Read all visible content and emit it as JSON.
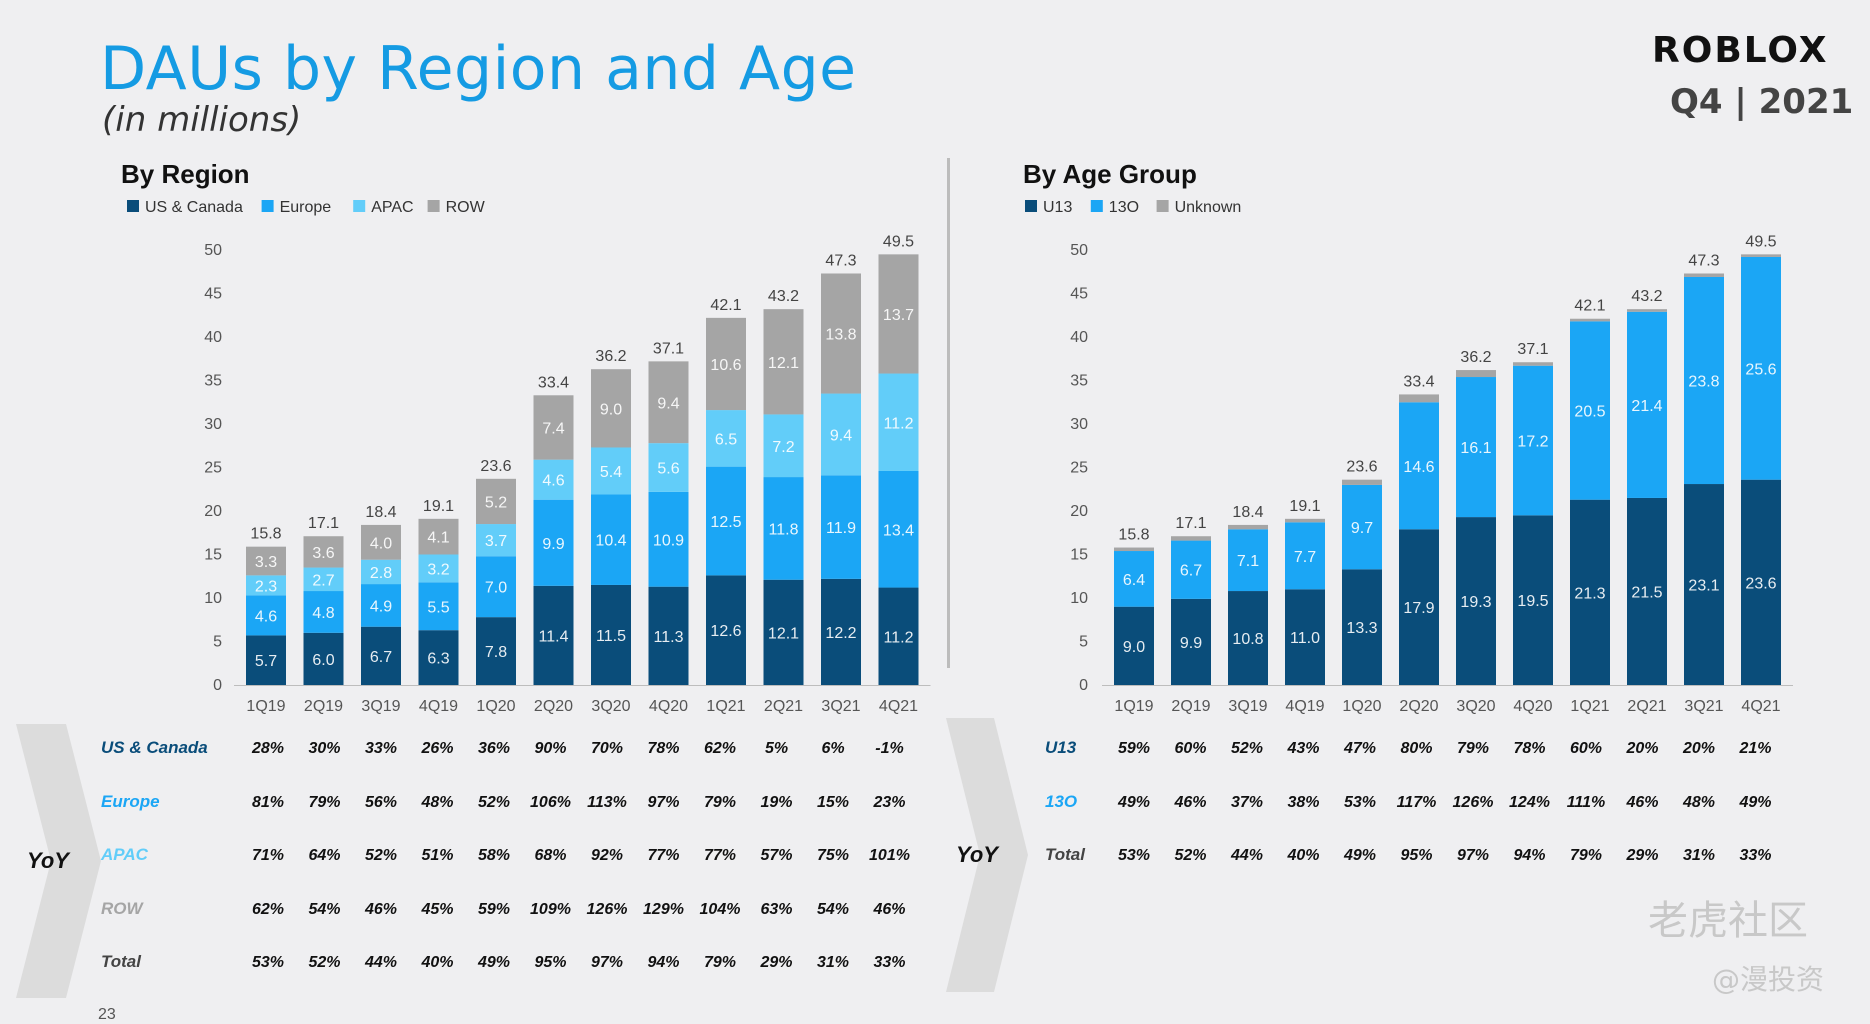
{
  "header": {
    "title": "DAUs by Region and Age",
    "subtitle": "(in millions)",
    "logo": "ROBLOX",
    "period": "Q4 | 2021"
  },
  "page_number": "23",
  "watermark": {
    "main": "老虎社区",
    "sub": "@漫投资"
  },
  "colors": {
    "dark": "#0a4d7a",
    "mid": "#1ba6f5",
    "light": "#62cdf9",
    "gray": "#a5a5a5"
  },
  "chart_data": [
    {
      "type": "bar",
      "stacked": true,
      "title": "By Region",
      "categories": [
        "1Q19",
        "2Q19",
        "3Q19",
        "4Q19",
        "1Q20",
        "2Q20",
        "3Q20",
        "4Q20",
        "1Q21",
        "2Q21",
        "3Q21",
        "4Q21"
      ],
      "ylim": [
        0,
        50
      ],
      "yticks": [
        0,
        5,
        10,
        15,
        20,
        25,
        30,
        35,
        40,
        45,
        50
      ],
      "legend_position": "top-left",
      "series": [
        {
          "name": "US & Canada",
          "color": "#0a4d7a",
          "values": [
            5.7,
            6.0,
            6.7,
            6.3,
            7.8,
            11.4,
            11.5,
            11.3,
            12.6,
            12.1,
            12.2,
            11.2
          ],
          "labels": [
            "5.7",
            "6.0",
            "6.7",
            "6.3",
            "7.8",
            "11.4",
            "11.5",
            "11.3",
            "12.6",
            "12.1",
            "12.2",
            "11.2"
          ]
        },
        {
          "name": "Europe",
          "color": "#1ba6f5",
          "values": [
            4.6,
            4.8,
            4.9,
            5.5,
            7.0,
            9.9,
            10.4,
            10.9,
            12.5,
            11.8,
            11.9,
            13.4
          ],
          "labels": [
            "4.6",
            "4.8",
            "4.9",
            "5.5",
            "7.0",
            "9.9",
            "10.4",
            "10.9",
            "12.5",
            "11.8",
            "11.9",
            "13.4"
          ]
        },
        {
          "name": "APAC",
          "color": "#62cdf9",
          "values": [
            2.3,
            2.7,
            2.8,
            3.2,
            3.7,
            4.6,
            5.4,
            5.6,
            6.5,
            7.2,
            9.4,
            11.2
          ],
          "labels": [
            "2.3",
            "2.7",
            "2.8",
            "3.2",
            "3.7",
            "4.6",
            "5.4",
            "5.6",
            "6.5",
            "7.2",
            "9.4",
            "11.2"
          ]
        },
        {
          "name": "ROW",
          "color": "#a5a5a5",
          "values": [
            3.3,
            3.6,
            4.0,
            4.1,
            5.2,
            7.4,
            9.0,
            9.4,
            10.6,
            12.1,
            13.8,
            13.7
          ],
          "labels": [
            "3.3",
            "3.6",
            "4.0",
            "4.1",
            "5.2",
            "7.4",
            "9.0",
            "9.4",
            "10.6",
            "12.1",
            "13.8",
            "13.7"
          ]
        }
      ],
      "totals": [
        "15.8",
        "17.1",
        "18.4",
        "19.1",
        "23.6",
        "33.4",
        "36.2",
        "37.1",
        "42.1",
        "43.2",
        "47.3",
        "49.5"
      ]
    },
    {
      "type": "bar",
      "stacked": true,
      "title": "By Age Group",
      "categories": [
        "1Q19",
        "2Q19",
        "3Q19",
        "4Q19",
        "1Q20",
        "2Q20",
        "3Q20",
        "4Q20",
        "1Q21",
        "2Q21",
        "3Q21",
        "4Q21"
      ],
      "ylim": [
        0,
        50
      ],
      "yticks": [
        0,
        5,
        10,
        15,
        20,
        25,
        30,
        35,
        40,
        45,
        50
      ],
      "legend_position": "top-left",
      "series": [
        {
          "name": "U13",
          "color": "#0a4d7a",
          "values": [
            9.0,
            9.9,
            10.8,
            11.0,
            13.3,
            17.9,
            19.3,
            19.5,
            21.3,
            21.5,
            23.1,
            23.6
          ],
          "labels": [
            "9.0",
            "9.9",
            "10.8",
            "11.0",
            "13.3",
            "17.9",
            "19.3",
            "19.5",
            "21.3",
            "21.5",
            "23.1",
            "23.6"
          ]
        },
        {
          "name": "13O",
          "color": "#1ba6f5",
          "values": [
            6.4,
            6.7,
            7.1,
            7.7,
            9.7,
            14.6,
            16.1,
            17.2,
            20.5,
            21.4,
            23.8,
            25.6
          ],
          "labels": [
            "6.4",
            "6.7",
            "7.1",
            "7.7",
            "9.7",
            "14.6",
            "16.1",
            "17.2",
            "20.5",
            "21.4",
            "23.8",
            "25.6"
          ]
        },
        {
          "name": "Unknown",
          "color": "#a5a5a5",
          "values": [
            0.4,
            0.5,
            0.5,
            0.4,
            0.6,
            0.9,
            0.8,
            0.4,
            0.3,
            0.3,
            0.4,
            0.3
          ],
          "labels": [
            "",
            "",
            "",
            "",
            "",
            "",
            "",
            "",
            "",
            "",
            "",
            ""
          ]
        }
      ],
      "totals": [
        "15.8",
        "17.1",
        "18.4",
        "19.1",
        "23.6",
        "33.4",
        "36.2",
        "37.1",
        "42.1",
        "43.2",
        "47.3",
        "49.5"
      ]
    }
  ],
  "yoy_region": {
    "label": "YoY",
    "rows": [
      {
        "name": "US & Canada",
        "color": "#0a4d7a",
        "values": [
          "28%",
          "30%",
          "33%",
          "26%",
          "36%",
          "90%",
          "70%",
          "78%",
          "62%",
          "5%",
          "6%",
          "-1%"
        ]
      },
      {
        "name": "Europe",
        "color": "#1ba6f5",
        "values": [
          "81%",
          "79%",
          "56%",
          "48%",
          "52%",
          "106%",
          "113%",
          "97%",
          "79%",
          "19%",
          "15%",
          "23%"
        ]
      },
      {
        "name": "APAC",
        "color": "#62cdf9",
        "values": [
          "71%",
          "64%",
          "52%",
          "51%",
          "58%",
          "68%",
          "92%",
          "77%",
          "77%",
          "57%",
          "75%",
          "101%"
        ]
      },
      {
        "name": "ROW",
        "color": "#a5a5a5",
        "values": [
          "62%",
          "54%",
          "46%",
          "45%",
          "59%",
          "109%",
          "126%",
          "129%",
          "104%",
          "63%",
          "54%",
          "46%"
        ]
      },
      {
        "name": "Total",
        "color": "#444444",
        "values": [
          "53%",
          "52%",
          "44%",
          "40%",
          "49%",
          "95%",
          "97%",
          "94%",
          "79%",
          "29%",
          "31%",
          "33%"
        ]
      }
    ]
  },
  "yoy_age": {
    "label": "YoY",
    "rows": [
      {
        "name": "U13",
        "color": "#0a4d7a",
        "values": [
          "59%",
          "60%",
          "52%",
          "43%",
          "47%",
          "80%",
          "79%",
          "78%",
          "60%",
          "20%",
          "20%",
          "21%"
        ]
      },
      {
        "name": "13O",
        "color": "#1ba6f5",
        "values": [
          "49%",
          "46%",
          "37%",
          "38%",
          "53%",
          "117%",
          "126%",
          "124%",
          "111%",
          "46%",
          "48%",
          "49%"
        ]
      },
      {
        "name": "Total",
        "color": "#444444",
        "values": [
          "53%",
          "52%",
          "44%",
          "40%",
          "49%",
          "95%",
          "97%",
          "94%",
          "79%",
          "29%",
          "31%",
          "33%"
        ]
      }
    ]
  }
}
